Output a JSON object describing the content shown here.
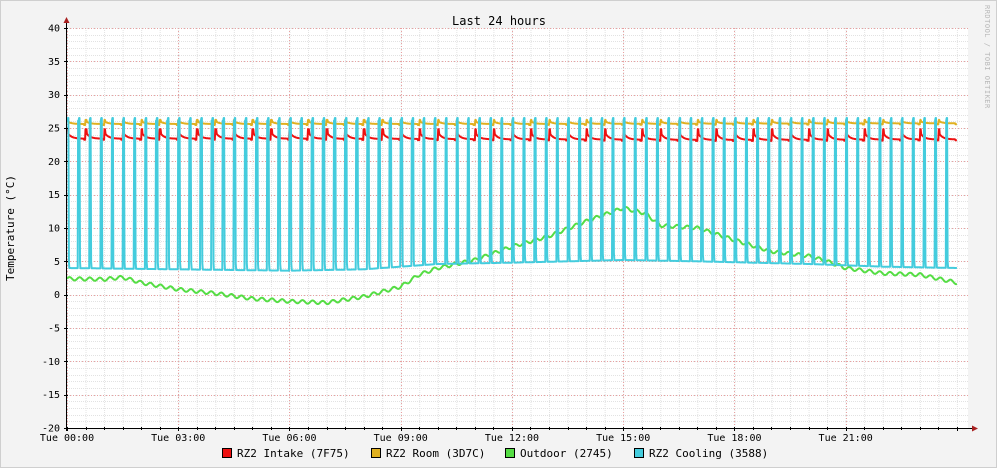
{
  "chart_data": {
    "type": "line",
    "title": "Last 24 hours",
    "ylabel": "Temperature (°C)",
    "watermark": "RRDTOOL / TOBI OETIKER",
    "ylim": [
      -20,
      40
    ],
    "xlim": [
      0,
      24.3
    ],
    "y_ticks": [
      40,
      35,
      30,
      25,
      20,
      15,
      10,
      5,
      0,
      -5,
      -10,
      -15,
      -20
    ],
    "x_ticks": [
      {
        "label": "Tue 00:00",
        "hour": 0
      },
      {
        "label": "Tue 03:00",
        "hour": 3
      },
      {
        "label": "Tue 06:00",
        "hour": 6
      },
      {
        "label": "Tue 09:00",
        "hour": 9
      },
      {
        "label": "Tue 12:00",
        "hour": 12
      },
      {
        "label": "Tue 15:00",
        "hour": 15
      },
      {
        "label": "Tue 18:00",
        "hour": 18
      },
      {
        "label": "Tue 21:00",
        "hour": 21
      }
    ],
    "grid": true,
    "legend_position": "bottom",
    "series": [
      {
        "name": "RZ2 Intake (7F75)",
        "color": "#ee1111",
        "pattern": "sawtooth",
        "period_hours": 0.5,
        "peak": 24.8,
        "base": 23.0,
        "samples": [
          [
            0,
            23.4
          ],
          [
            6,
            23.4
          ],
          [
            12,
            23.3
          ],
          [
            18,
            23.2
          ],
          [
            24,
            23.3
          ]
        ]
      },
      {
        "name": "RZ2 Room (3D7C)",
        "color": "#e0b020",
        "pattern": "sawtooth",
        "period_hours": 0.5,
        "peak": 26.2,
        "base": 25.3,
        "samples": [
          [
            0,
            25.6
          ],
          [
            12,
            25.6
          ],
          [
            24,
            25.7
          ]
        ]
      },
      {
        "name": "Outdoor (2745)",
        "color": "#55dd44",
        "pattern": "trend",
        "samples": [
          [
            0,
            2.4
          ],
          [
            1,
            2.3
          ],
          [
            1.5,
            2.6
          ],
          [
            2,
            1.8
          ],
          [
            3,
            0.8
          ],
          [
            4,
            0.2
          ],
          [
            5,
            -0.6
          ],
          [
            6,
            -1.0
          ],
          [
            7,
            -1.2
          ],
          [
            8,
            -0.3
          ],
          [
            9,
            1.2
          ],
          [
            9.5,
            3.0
          ],
          [
            10,
            4.0
          ],
          [
            11,
            5.2
          ],
          [
            12,
            7.2
          ],
          [
            13,
            8.8
          ],
          [
            14,
            11.0
          ],
          [
            15,
            13.0
          ],
          [
            15.6,
            12.2
          ],
          [
            16,
            10.4
          ],
          [
            17,
            10.0
          ],
          [
            18,
            8.2
          ],
          [
            19,
            6.5
          ],
          [
            20,
            5.8
          ],
          [
            20.5,
            5.0
          ],
          [
            21,
            4.0
          ],
          [
            22,
            3.2
          ],
          [
            23,
            3.0
          ],
          [
            24,
            1.8
          ]
        ]
      },
      {
        "name": "RZ2 Cooling (3588)",
        "color": "#44ccdd",
        "pattern": "pulse",
        "period_hours": 0.3,
        "peak": 26.5,
        "samples": [
          [
            0,
            4.0
          ],
          [
            6,
            3.6
          ],
          [
            8,
            3.8
          ],
          [
            10,
            4.6
          ],
          [
            12,
            4.8
          ],
          [
            15,
            5.2
          ],
          [
            17,
            5.0
          ],
          [
            20,
            4.6
          ],
          [
            22,
            4.2
          ],
          [
            24,
            4.0
          ]
        ]
      }
    ]
  }
}
